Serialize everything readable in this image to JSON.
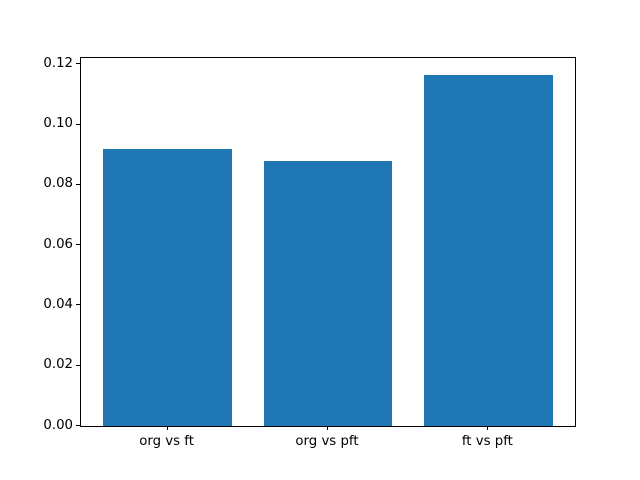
{
  "chart_data": {
    "type": "bar",
    "categories": [
      "org vs ft",
      "org vs pft",
      "ft vs pft"
    ],
    "values": [
      0.0919,
      0.0879,
      0.1166
    ],
    "ytick_labels": [
      "0.00",
      "0.02",
      "0.04",
      "0.06",
      "0.08",
      "0.10",
      "0.12"
    ],
    "ylim": [
      0,
      0.1221
    ],
    "xlim": [
      -0.54,
      2.54
    ],
    "bar_width_units": 0.8,
    "bar_color": "#1f77b4",
    "axis_color": "#000000",
    "text_color": "#000000",
    "background_color": "#ffffff",
    "grid": false,
    "legend": false,
    "title": "",
    "xlabel": "",
    "ylabel": ""
  }
}
